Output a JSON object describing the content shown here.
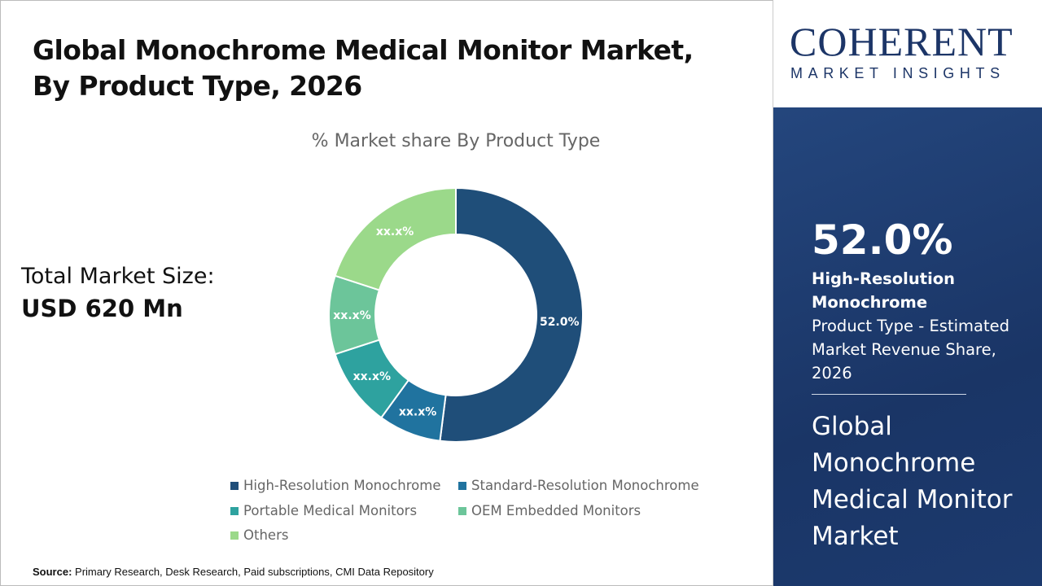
{
  "title_line1": "Global Monochrome Medical Monitor Market,",
  "title_line2": "By Product Type, 2026",
  "total_label": "Total Market Size:",
  "total_value": "USD 620 Mn",
  "source_label": "Source:",
  "source_text": " Primary Research, Desk Research, Paid subscriptions, CMI Data Repository",
  "logo": {
    "main": "COHERENT",
    "sub": "MARKET INSIGHTS"
  },
  "panel": {
    "percent": "52.0%",
    "segment": "High-Resolution Monochrome",
    "desc": "Product Type - Estimated Market Revenue Share, 2026",
    "market_name": "Global Monochrome Medical Monitor Market"
  },
  "chart_data": {
    "type": "pie",
    "donut": true,
    "title": "% Market share By Product Type",
    "categories": [
      "High-Resolution Monochrome",
      "Standard-Resolution Monochrome",
      "Portable Medical Monitors",
      "OEM Embedded Monitors",
      "Others"
    ],
    "values": [
      52.0,
      8,
      10,
      10,
      20
    ],
    "labels": [
      "52.0%",
      "xx.x%",
      "xx.x%",
      "xx.x%",
      "xx.x%"
    ],
    "colors": [
      "#1f4e79",
      "#20739f",
      "#2ea29f",
      "#6cc59a",
      "#9bd98a"
    ],
    "legend_placement": "bottom"
  }
}
